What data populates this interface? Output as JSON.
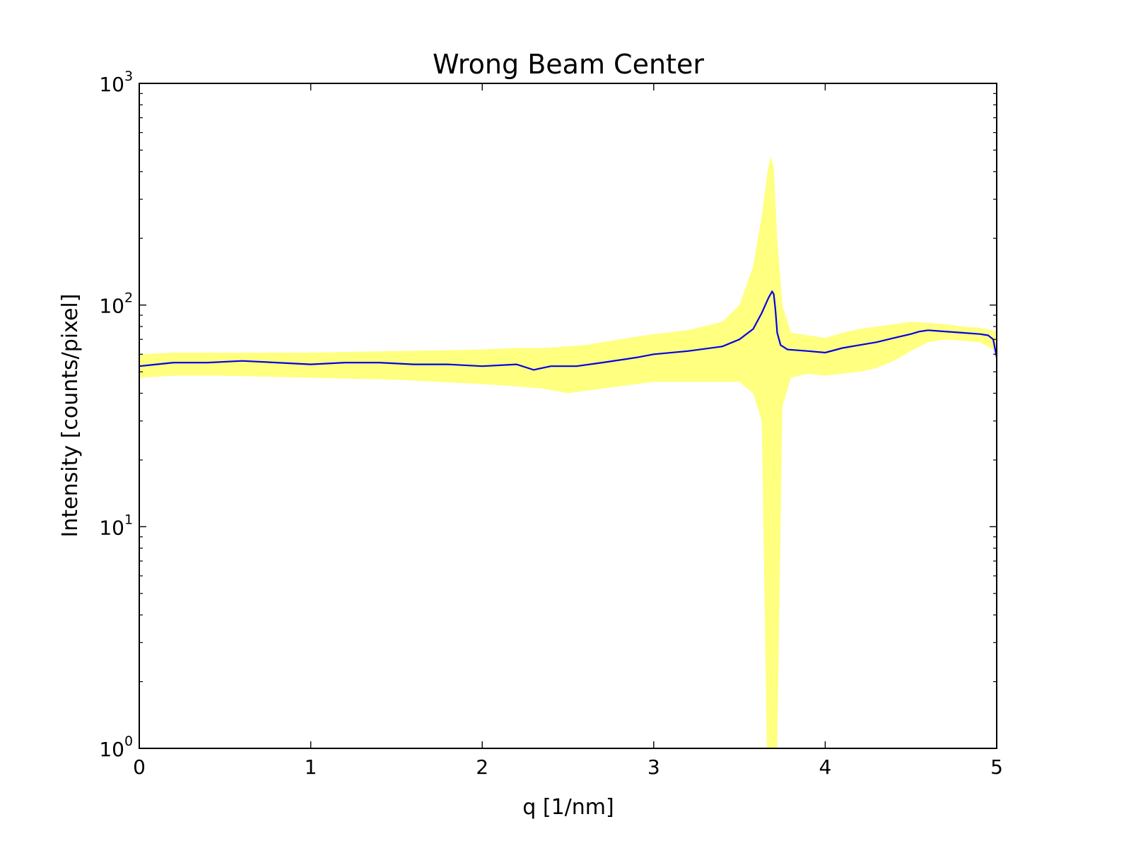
{
  "chart_data": {
    "type": "area",
    "title": "Wrong Beam Center",
    "xlabel": "q [1/nm]",
    "ylabel": "Intensity [counts/pixel]",
    "xlim": [
      0,
      5
    ],
    "ylim": [
      1,
      1000
    ],
    "yscale": "log",
    "x_ticks": [
      {
        "value": 0,
        "label": "0"
      },
      {
        "value": 1,
        "label": "1"
      },
      {
        "value": 2,
        "label": "2"
      },
      {
        "value": 3,
        "label": "3"
      },
      {
        "value": 4,
        "label": "4"
      },
      {
        "value": 5,
        "label": "5"
      }
    ],
    "y_ticks": [
      {
        "value": 1,
        "base": "10",
        "exp": "0"
      },
      {
        "value": 10,
        "base": "10",
        "exp": "1"
      },
      {
        "value": 100,
        "base": "10",
        "exp": "2"
      },
      {
        "value": 1000,
        "base": "10",
        "exp": "3"
      }
    ],
    "grid": false,
    "colors": {
      "line": "#0000e6",
      "band": "#ffff80",
      "axes": "#000000"
    },
    "series": [
      {
        "kind": "line",
        "x": [
          0,
          0.1,
          0.2,
          0.4,
          0.6,
          0.8,
          1.0,
          1.2,
          1.4,
          1.6,
          1.8,
          2.0,
          2.2,
          2.3,
          2.4,
          2.55,
          2.7,
          2.9,
          3.0,
          3.2,
          3.4,
          3.5,
          3.58,
          3.63,
          3.67,
          3.69,
          3.7,
          3.71,
          3.72,
          3.74,
          3.78,
          3.9,
          4.0,
          4.1,
          4.2,
          4.3,
          4.4,
          4.5,
          4.55,
          4.6,
          4.7,
          4.8,
          4.9,
          4.95,
          4.98,
          5.0
        ],
        "y": [
          53,
          54,
          55,
          55,
          56,
          55,
          54,
          55,
          55,
          54,
          54,
          53,
          54,
          51,
          53,
          53,
          55,
          58,
          60,
          62,
          65,
          70,
          78,
          92,
          108,
          115,
          112,
          95,
          75,
          66,
          63,
          62,
          61,
          64,
          66,
          68,
          71,
          74,
          76,
          77,
          76,
          75,
          74,
          73,
          70,
          58
        ]
      },
      {
        "kind": "band",
        "x": [
          0,
          0.2,
          0.5,
          1.0,
          1.5,
          2.0,
          2.2,
          2.35,
          2.5,
          2.6,
          2.8,
          3.0,
          3.2,
          3.4,
          3.5,
          3.58,
          3.63,
          3.66,
          3.68,
          3.7,
          3.72,
          3.75,
          3.8,
          3.9,
          4.0,
          4.1,
          4.2,
          4.3,
          4.4,
          4.5,
          4.6,
          4.7,
          4.8,
          4.9,
          5.0
        ],
        "upper": [
          60,
          61,
          61,
          61,
          62,
          63,
          64,
          64,
          65,
          66,
          70,
          74,
          77,
          84,
          100,
          150,
          250,
          380,
          470,
          420,
          200,
          100,
          75,
          73,
          71,
          75,
          78,
          80,
          82,
          84,
          83,
          82,
          80,
          79,
          76
        ],
        "lower": [
          47,
          48,
          48,
          47,
          46,
          44,
          43,
          42,
          40,
          41,
          43,
          45,
          45,
          45,
          45,
          40,
          30,
          1,
          1,
          1,
          1,
          35,
          47,
          49,
          48,
          49,
          50,
          52,
          56,
          62,
          68,
          70,
          69,
          68,
          62
        ]
      }
    ]
  }
}
